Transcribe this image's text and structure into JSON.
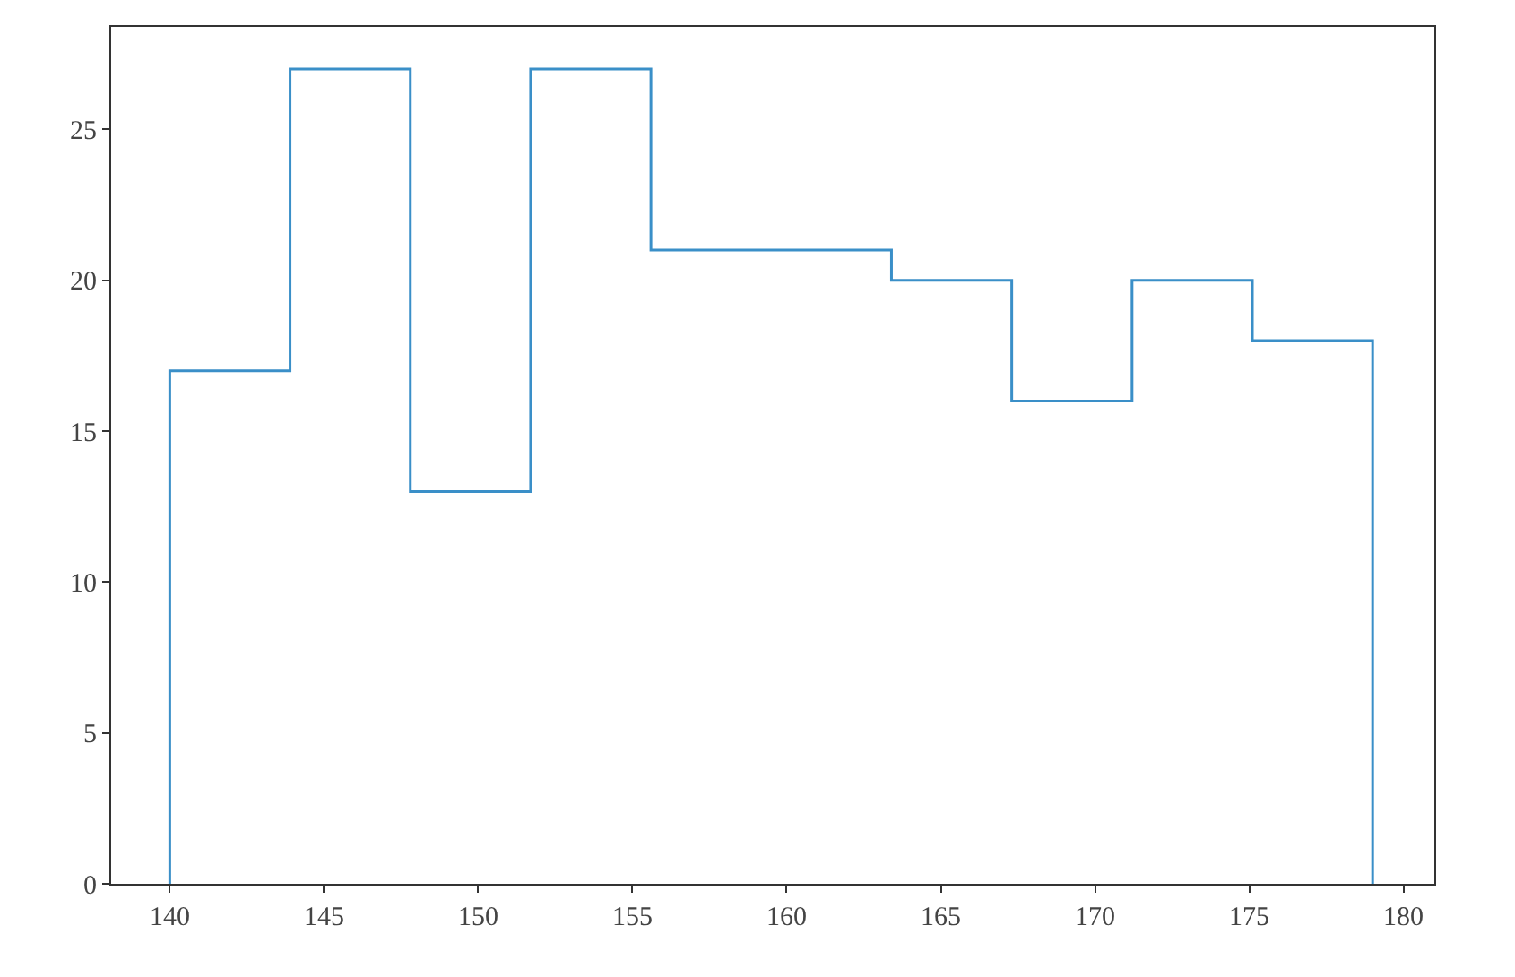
{
  "chart_data": {
    "type": "histogram",
    "bins": [
      140,
      143.9,
      147.8,
      151.7,
      155.6,
      159.5,
      163.4,
      167.3,
      171.2,
      175.1,
      179
    ],
    "values": [
      17,
      27,
      13,
      27,
      21,
      21,
      20,
      16,
      20,
      18
    ],
    "color": "#3a8fc8",
    "xlim": [
      138.1,
      181
    ],
    "xticks": [
      140,
      145,
      150,
      155,
      160,
      165,
      170,
      175,
      180
    ],
    "ylim": [
      0,
      28.4
    ],
    "yticks": [
      0,
      5,
      10,
      15,
      20,
      25
    ]
  }
}
